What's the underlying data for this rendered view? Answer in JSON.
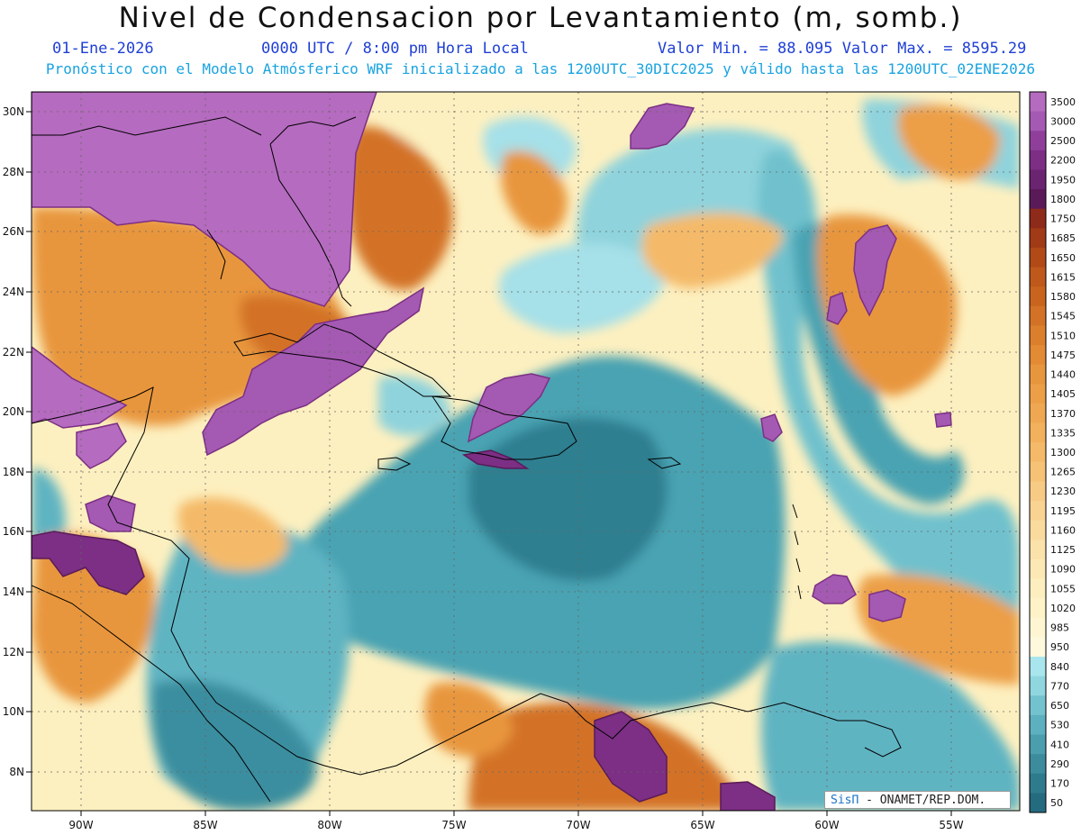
{
  "title": "Nivel de Condensacion por Levantamiento (m, somb.)",
  "date": "01-Ene-2026",
  "time": "0000 UTC / 8:00 pm Hora Local",
  "min_max": "Valor Min. = 88.095   Valor Max. = 8595.29",
  "model_note": "Pronóstico con el Modelo Atmósferico WRF inicializado a las 1200UTC_30DIC2025 y válido hasta las  1200UTC_02ENE2026",
  "credit": {
    "sis": "SisΠ",
    "rest": " - ONAMET/REP.DOM."
  },
  "lat_labels": [
    "30N",
    "28N",
    "26N",
    "24N",
    "22N",
    "20N",
    "18N",
    "16N",
    "14N",
    "12N",
    "10N",
    "8N"
  ],
  "lon_labels": [
    "90W",
    "85W",
    "80W",
    "75W",
    "70W",
    "65W",
    "60W",
    "55W"
  ],
  "colorbar": {
    "labels": [
      "3500",
      "3000",
      "2500",
      "2200",
      "1950",
      "1800",
      "1750",
      "1685",
      "1650",
      "1615",
      "1580",
      "1545",
      "1510",
      "1475",
      "1440",
      "1405",
      "1370",
      "1335",
      "1300",
      "1265",
      "1230",
      "1195",
      "1160",
      "1125",
      "1090",
      "1055",
      "1020",
      "985",
      "950",
      "840",
      "770",
      "650",
      "530",
      "410",
      "290",
      "170",
      "50"
    ],
    "colors": [
      "#b56bbf",
      "#a459b2",
      "#8f3f9a",
      "#7c2f84",
      "#6a2470",
      "#5a1a58",
      "#8e2a1a",
      "#a13a17",
      "#b24a18",
      "#bf581b",
      "#c9641f",
      "#d37226",
      "#dc7f2d",
      "#e28a34",
      "#e8963e",
      "#ec9f47",
      "#efa851",
      "#f2b15d",
      "#f4ba69",
      "#f6c276",
      "#f8cb84",
      "#f9d391",
      "#fadb9e",
      "#fbe2aa",
      "#fce8b5",
      "#fdeebf",
      "#fdf2c8",
      "#fef6d3",
      "#fef9dd",
      "#a8e5ec",
      "#8fd6df",
      "#73c3cf",
      "#5cb0bf",
      "#4a9eae",
      "#3c8c9e",
      "#2f7b8e",
      "#246b80"
    ]
  },
  "icons": {
    "coastline": "coastline-shape",
    "credit_logo": "sispi-logo"
  }
}
